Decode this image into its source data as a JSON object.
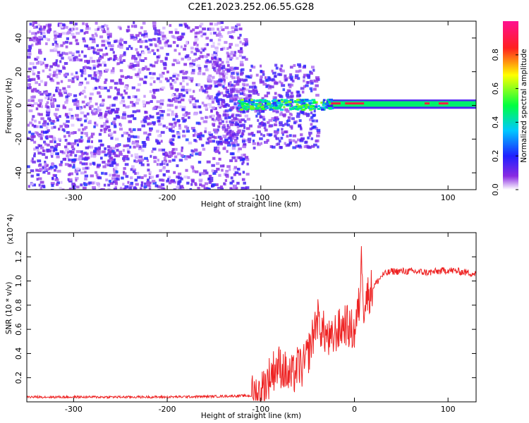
{
  "title": "C2E1.2023.252.06.55.G28",
  "chart_data": [
    {
      "type": "heatmap",
      "xlabel": "Height of straight line (km)",
      "ylabel": "Frequency (Hz)",
      "xlim": [
        -350,
        130
      ],
      "ylim": [
        -50,
        50
      ],
      "xticks": [
        -300,
        -200,
        -100,
        0,
        100
      ],
      "yticks": [
        -40,
        -20,
        0,
        20,
        40
      ],
      "colorbar": {
        "label": "Normalized spectral amplitude",
        "range": [
          0.0,
          1.0
        ],
        "ticks": [
          "0.0",
          "0.2",
          "0.4",
          "0.6",
          "0.8"
        ],
        "colormap": "rainbow (white-purple-blue-cyan-green-yellow-red-magenta)"
      },
      "features": [
        {
          "x_range": [
            -350,
            -120
          ],
          "y_range": [
            -50,
            50
          ],
          "amplitude": 0.1
        },
        {
          "x_range": [
            -120,
            130
          ],
          "center_frequency": 0,
          "y_range": [
            -3,
            5
          ],
          "amplitude": 0.6
        },
        {
          "x_range": [
            -30,
            130
          ],
          "center_frequency": 1,
          "amplitude": 0.95
        }
      ]
    },
    {
      "type": "line",
      "xlabel": "Height of straight line (km)",
      "ylabel": "SNR (10 * v/v)",
      "multiplier": "(x10^4)",
      "xlim": [
        -350,
        130
      ],
      "ylim": [
        0,
        1.4
      ],
      "xticks": [
        -300,
        -200,
        -100,
        0,
        100
      ],
      "yticks": [
        "0.2",
        "0.4",
        "0.6",
        "0.8",
        "1.0",
        "1.2"
      ],
      "series": [
        {
          "color": "#ee2222",
          "x": [
            -350,
            -300,
            -250,
            -200,
            -150,
            -120,
            -110,
            -100,
            -95,
            -90,
            -85,
            -80,
            -75,
            -70,
            -65,
            -60,
            -55,
            -50,
            -45,
            -40,
            -35,
            -30,
            -25,
            -20,
            -15,
            -10,
            -5,
            0,
            5,
            8,
            10,
            15,
            20,
            25,
            30,
            40,
            60,
            80,
            100,
            130
          ],
          "values": [
            0.04,
            0.04,
            0.04,
            0.04,
            0.045,
            0.05,
            0.05,
            0.08,
            0.15,
            0.22,
            0.28,
            0.3,
            0.26,
            0.2,
            0.22,
            0.3,
            0.28,
            0.38,
            0.52,
            0.7,
            0.6,
            0.55,
            0.48,
            0.58,
            0.6,
            0.65,
            0.6,
            0.58,
            0.8,
            1.22,
            0.8,
            0.9,
            0.95,
            1.0,
            1.05,
            1.08,
            1.08,
            1.07,
            1.09,
            1.06
          ]
        }
      ]
    }
  ]
}
